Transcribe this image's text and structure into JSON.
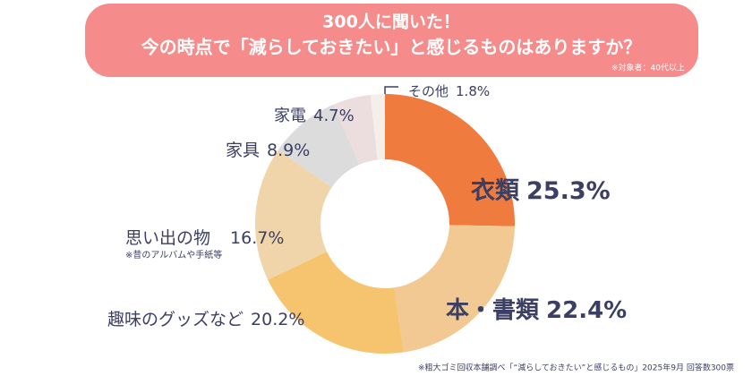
{
  "chart_data": {
    "type": "donut",
    "title": "300人に聞いた！",
    "subtitle": "今の時点で「減らしておきたい」と感じるものはありますか？",
    "target_note": "※対象者：40代以上",
    "categories": [
      "衣類",
      "本・書類",
      "趣味のグッズなど",
      "思い出の物",
      "家具",
      "家電",
      "その他"
    ],
    "values": [
      25.3,
      22.4,
      20.2,
      16.7,
      8.9,
      4.7,
      1.8
    ],
    "value_labels": [
      "25.3%",
      "22.4%",
      "20.2%",
      "16.7%",
      "8.9%",
      "4.7%",
      "1.8%"
    ],
    "colors": [
      "#f07b3f",
      "#f2c993",
      "#f6c46f",
      "#f1d5aa",
      "#dcdcdc",
      "#ecdede",
      "#f5efec"
    ],
    "annotations": [
      "※昔のアルバムや手紙等"
    ],
    "footnote": "※粗大ゴミ回収本舗調べ「“減らしておきたい”と感じるもの」2025年9月 回答数300票"
  }
}
